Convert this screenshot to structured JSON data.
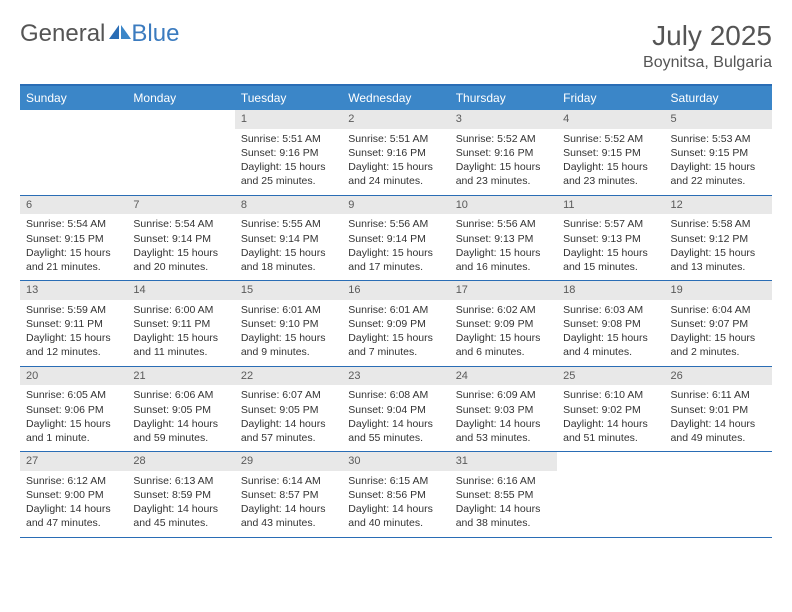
{
  "logo": {
    "text1": "General",
    "text2": "Blue"
  },
  "title": "July 2025",
  "location": "Boynitsa, Bulgaria",
  "colors": {
    "header_bg": "#3b86c8",
    "rule": "#2a6db5",
    "daynum_bg": "#e8e8e8",
    "text": "#333333",
    "muted": "#5a5a5a",
    "title": "#555555"
  },
  "dow": [
    "Sunday",
    "Monday",
    "Tuesday",
    "Wednesday",
    "Thursday",
    "Friday",
    "Saturday"
  ],
  "weeks": [
    [
      null,
      null,
      {
        "n": "1",
        "sr": "5:51 AM",
        "ss": "9:16 PM",
        "dl": "15 hours and 25 minutes."
      },
      {
        "n": "2",
        "sr": "5:51 AM",
        "ss": "9:16 PM",
        "dl": "15 hours and 24 minutes."
      },
      {
        "n": "3",
        "sr": "5:52 AM",
        "ss": "9:16 PM",
        "dl": "15 hours and 23 minutes."
      },
      {
        "n": "4",
        "sr": "5:52 AM",
        "ss": "9:15 PM",
        "dl": "15 hours and 23 minutes."
      },
      {
        "n": "5",
        "sr": "5:53 AM",
        "ss": "9:15 PM",
        "dl": "15 hours and 22 minutes."
      }
    ],
    [
      {
        "n": "6",
        "sr": "5:54 AM",
        "ss": "9:15 PM",
        "dl": "15 hours and 21 minutes."
      },
      {
        "n": "7",
        "sr": "5:54 AM",
        "ss": "9:14 PM",
        "dl": "15 hours and 20 minutes."
      },
      {
        "n": "8",
        "sr": "5:55 AM",
        "ss": "9:14 PM",
        "dl": "15 hours and 18 minutes."
      },
      {
        "n": "9",
        "sr": "5:56 AM",
        "ss": "9:14 PM",
        "dl": "15 hours and 17 minutes."
      },
      {
        "n": "10",
        "sr": "5:56 AM",
        "ss": "9:13 PM",
        "dl": "15 hours and 16 minutes."
      },
      {
        "n": "11",
        "sr": "5:57 AM",
        "ss": "9:13 PM",
        "dl": "15 hours and 15 minutes."
      },
      {
        "n": "12",
        "sr": "5:58 AM",
        "ss": "9:12 PM",
        "dl": "15 hours and 13 minutes."
      }
    ],
    [
      {
        "n": "13",
        "sr": "5:59 AM",
        "ss": "9:11 PM",
        "dl": "15 hours and 12 minutes."
      },
      {
        "n": "14",
        "sr": "6:00 AM",
        "ss": "9:11 PM",
        "dl": "15 hours and 11 minutes."
      },
      {
        "n": "15",
        "sr": "6:01 AM",
        "ss": "9:10 PM",
        "dl": "15 hours and 9 minutes."
      },
      {
        "n": "16",
        "sr": "6:01 AM",
        "ss": "9:09 PM",
        "dl": "15 hours and 7 minutes."
      },
      {
        "n": "17",
        "sr": "6:02 AM",
        "ss": "9:09 PM",
        "dl": "15 hours and 6 minutes."
      },
      {
        "n": "18",
        "sr": "6:03 AM",
        "ss": "9:08 PM",
        "dl": "15 hours and 4 minutes."
      },
      {
        "n": "19",
        "sr": "6:04 AM",
        "ss": "9:07 PM",
        "dl": "15 hours and 2 minutes."
      }
    ],
    [
      {
        "n": "20",
        "sr": "6:05 AM",
        "ss": "9:06 PM",
        "dl": "15 hours and 1 minute."
      },
      {
        "n": "21",
        "sr": "6:06 AM",
        "ss": "9:05 PM",
        "dl": "14 hours and 59 minutes."
      },
      {
        "n": "22",
        "sr": "6:07 AM",
        "ss": "9:05 PM",
        "dl": "14 hours and 57 minutes."
      },
      {
        "n": "23",
        "sr": "6:08 AM",
        "ss": "9:04 PM",
        "dl": "14 hours and 55 minutes."
      },
      {
        "n": "24",
        "sr": "6:09 AM",
        "ss": "9:03 PM",
        "dl": "14 hours and 53 minutes."
      },
      {
        "n": "25",
        "sr": "6:10 AM",
        "ss": "9:02 PM",
        "dl": "14 hours and 51 minutes."
      },
      {
        "n": "26",
        "sr": "6:11 AM",
        "ss": "9:01 PM",
        "dl": "14 hours and 49 minutes."
      }
    ],
    [
      {
        "n": "27",
        "sr": "6:12 AM",
        "ss": "9:00 PM",
        "dl": "14 hours and 47 minutes."
      },
      {
        "n": "28",
        "sr": "6:13 AM",
        "ss": "8:59 PM",
        "dl": "14 hours and 45 minutes."
      },
      {
        "n": "29",
        "sr": "6:14 AM",
        "ss": "8:57 PM",
        "dl": "14 hours and 43 minutes."
      },
      {
        "n": "30",
        "sr": "6:15 AM",
        "ss": "8:56 PM",
        "dl": "14 hours and 40 minutes."
      },
      {
        "n": "31",
        "sr": "6:16 AM",
        "ss": "8:55 PM",
        "dl": "14 hours and 38 minutes."
      },
      null,
      null
    ]
  ],
  "labels": {
    "sunrise": "Sunrise:",
    "sunset": "Sunset:",
    "daylight": "Daylight:"
  }
}
